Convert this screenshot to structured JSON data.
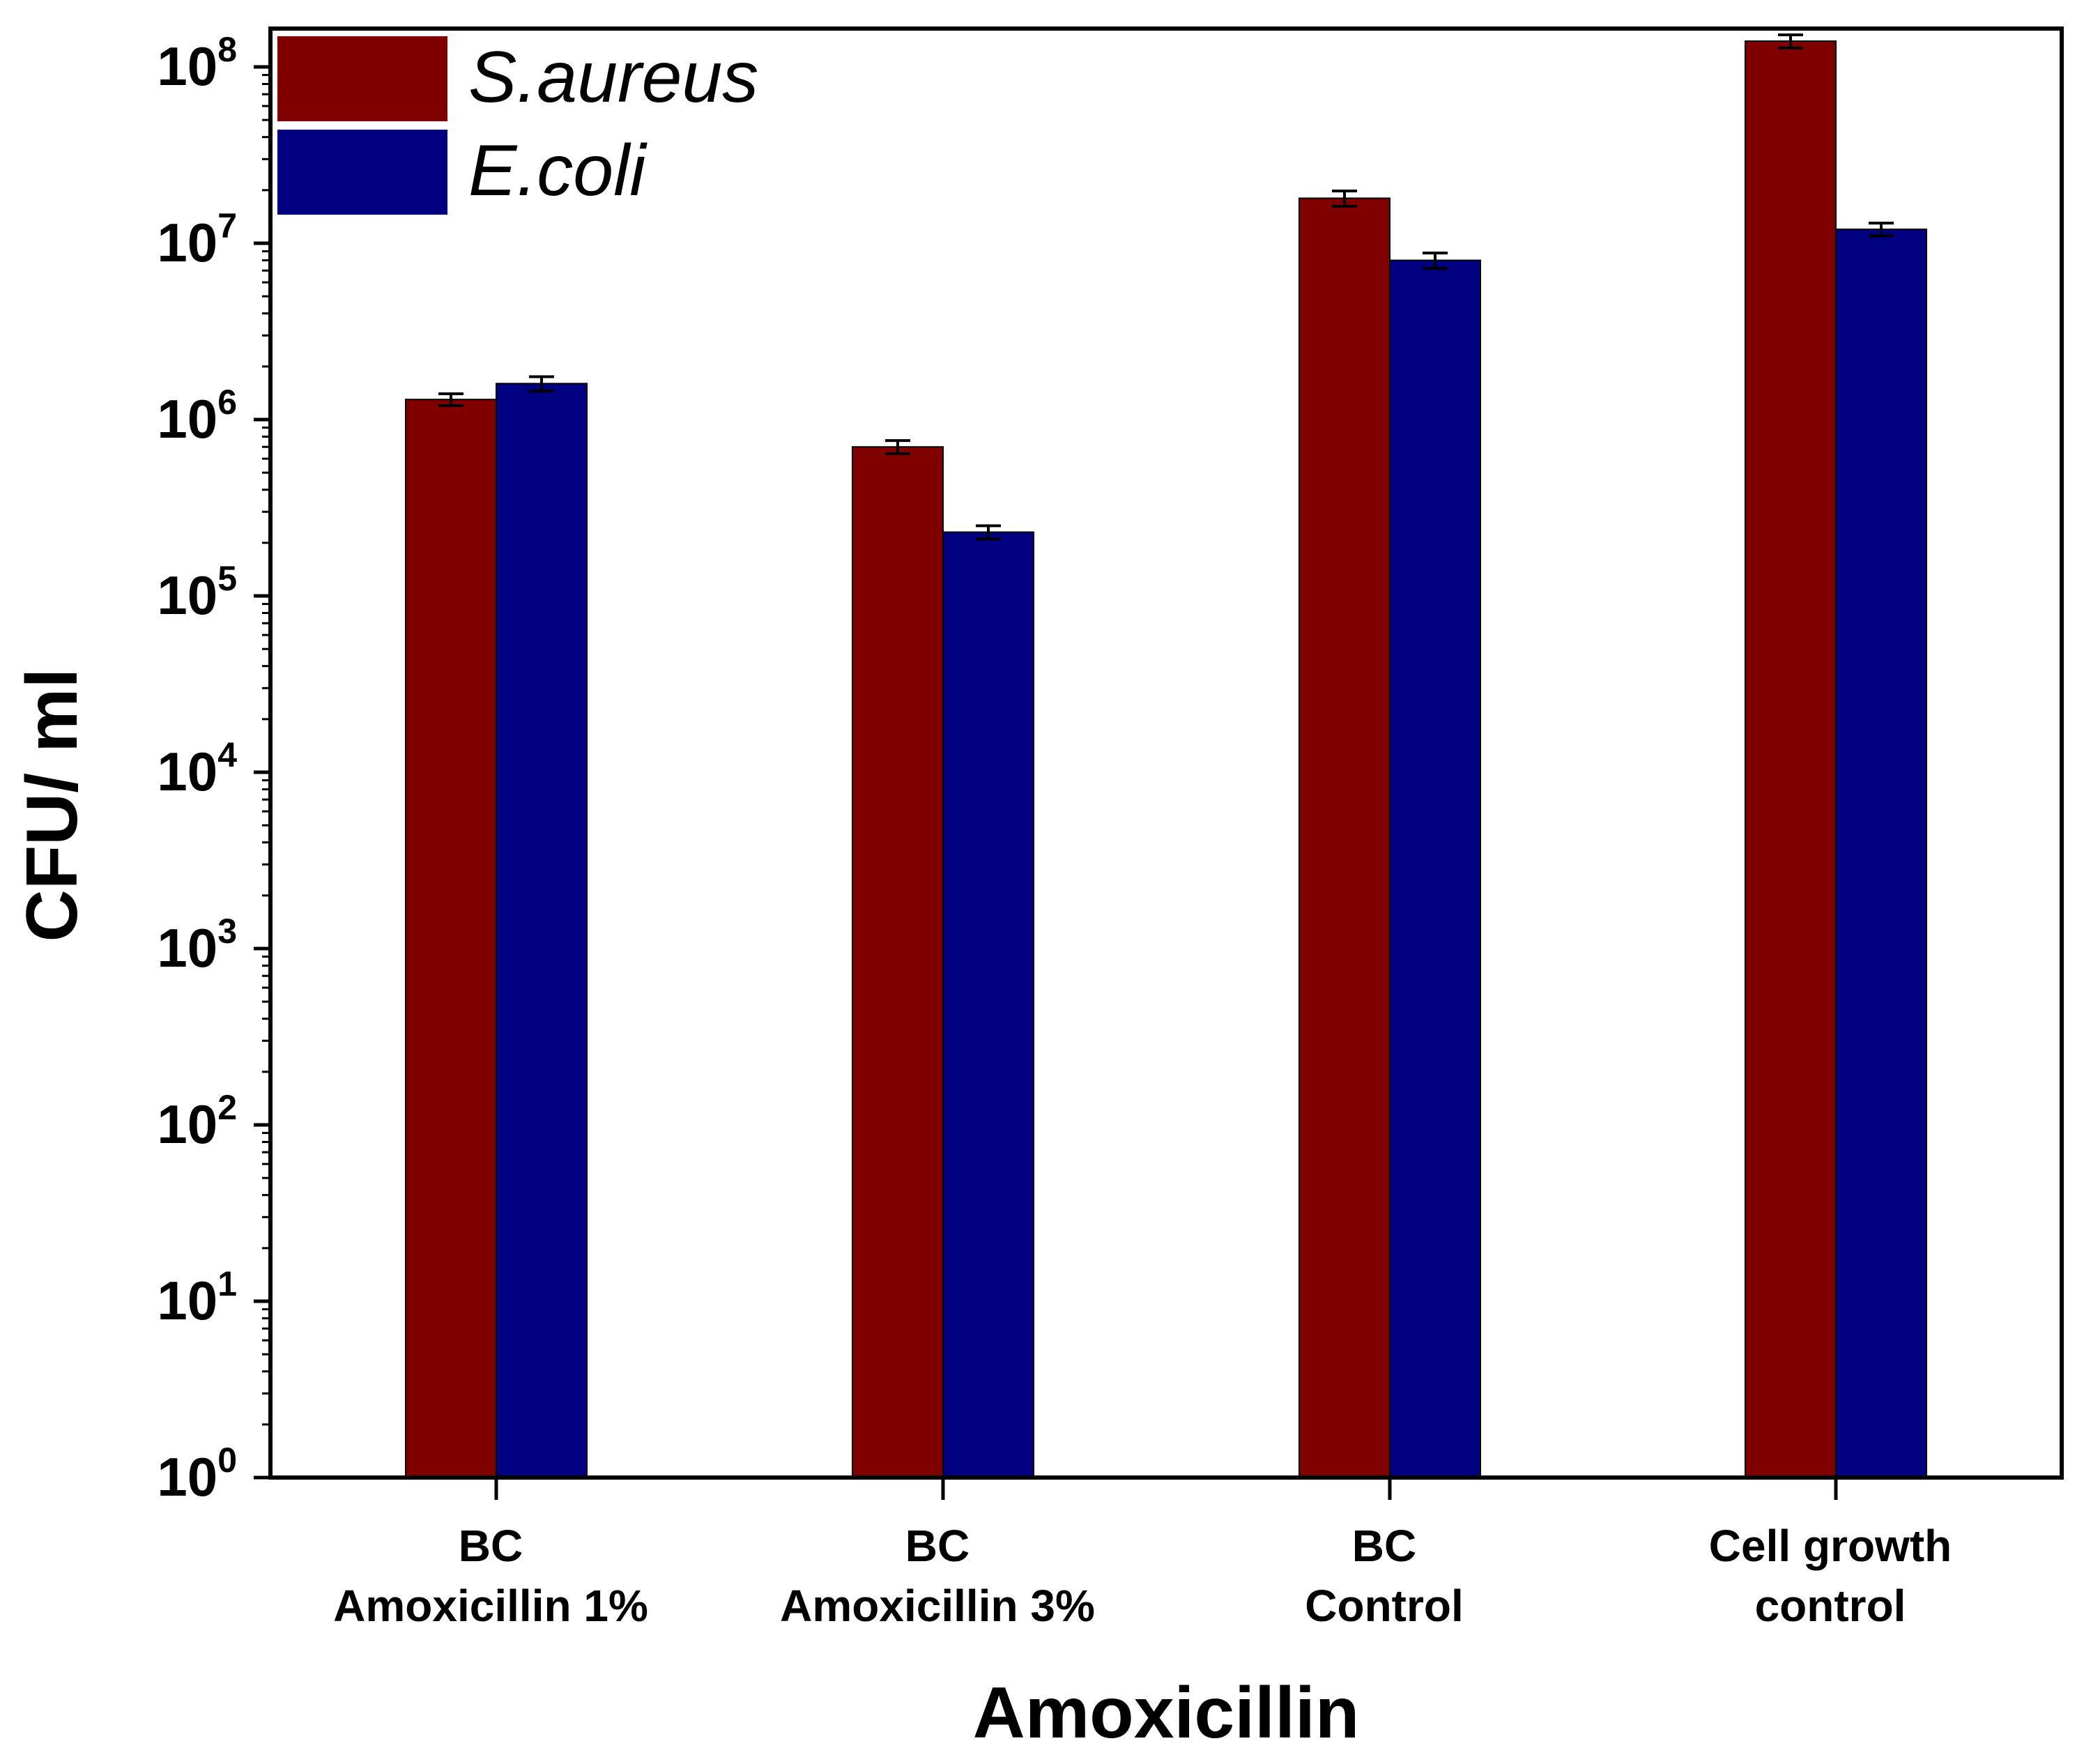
{
  "chart_data": {
    "type": "bar",
    "scale": "log",
    "title": "",
    "xlabel": "Amoxicillin",
    "ylabel": "CFU/ ml",
    "ylim": [
      1,
      200000000
    ],
    "y_ticks": [
      {
        "base": "10",
        "exp": "0",
        "value": 1
      },
      {
        "base": "10",
        "exp": "1",
        "value": 10
      },
      {
        "base": "10",
        "exp": "2",
        "value": 100
      },
      {
        "base": "10",
        "exp": "3",
        "value": 1000
      },
      {
        "base": "10",
        "exp": "4",
        "value": 10000
      },
      {
        "base": "10",
        "exp": "5",
        "value": 100000
      },
      {
        "base": "10",
        "exp": "6",
        "value": 1000000
      },
      {
        "base": "10",
        "exp": "7",
        "value": 10000000
      },
      {
        "base": "10",
        "exp": "8",
        "value": 100000000
      }
    ],
    "categories": [
      [
        "BC",
        "Amoxicillin 1%"
      ],
      [
        "BC",
        "Amoxicillin 3%"
      ],
      [
        "BC",
        "Control"
      ],
      [
        "Cell growth",
        "control"
      ]
    ],
    "series": [
      {
        "name": "S.aureus",
        "color": "#800000",
        "values": [
          1300000,
          700000,
          18000000,
          140000000
        ],
        "errors": [
          100000,
          60000,
          1800000,
          12000000
        ]
      },
      {
        "name": "E.coli",
        "color": "#000080",
        "values": [
          1600000,
          230000,
          8000000,
          12000000
        ],
        "errors": [
          150000,
          20000,
          800000,
          1000000
        ]
      }
    ],
    "legend": "top-left",
    "grid": false
  }
}
